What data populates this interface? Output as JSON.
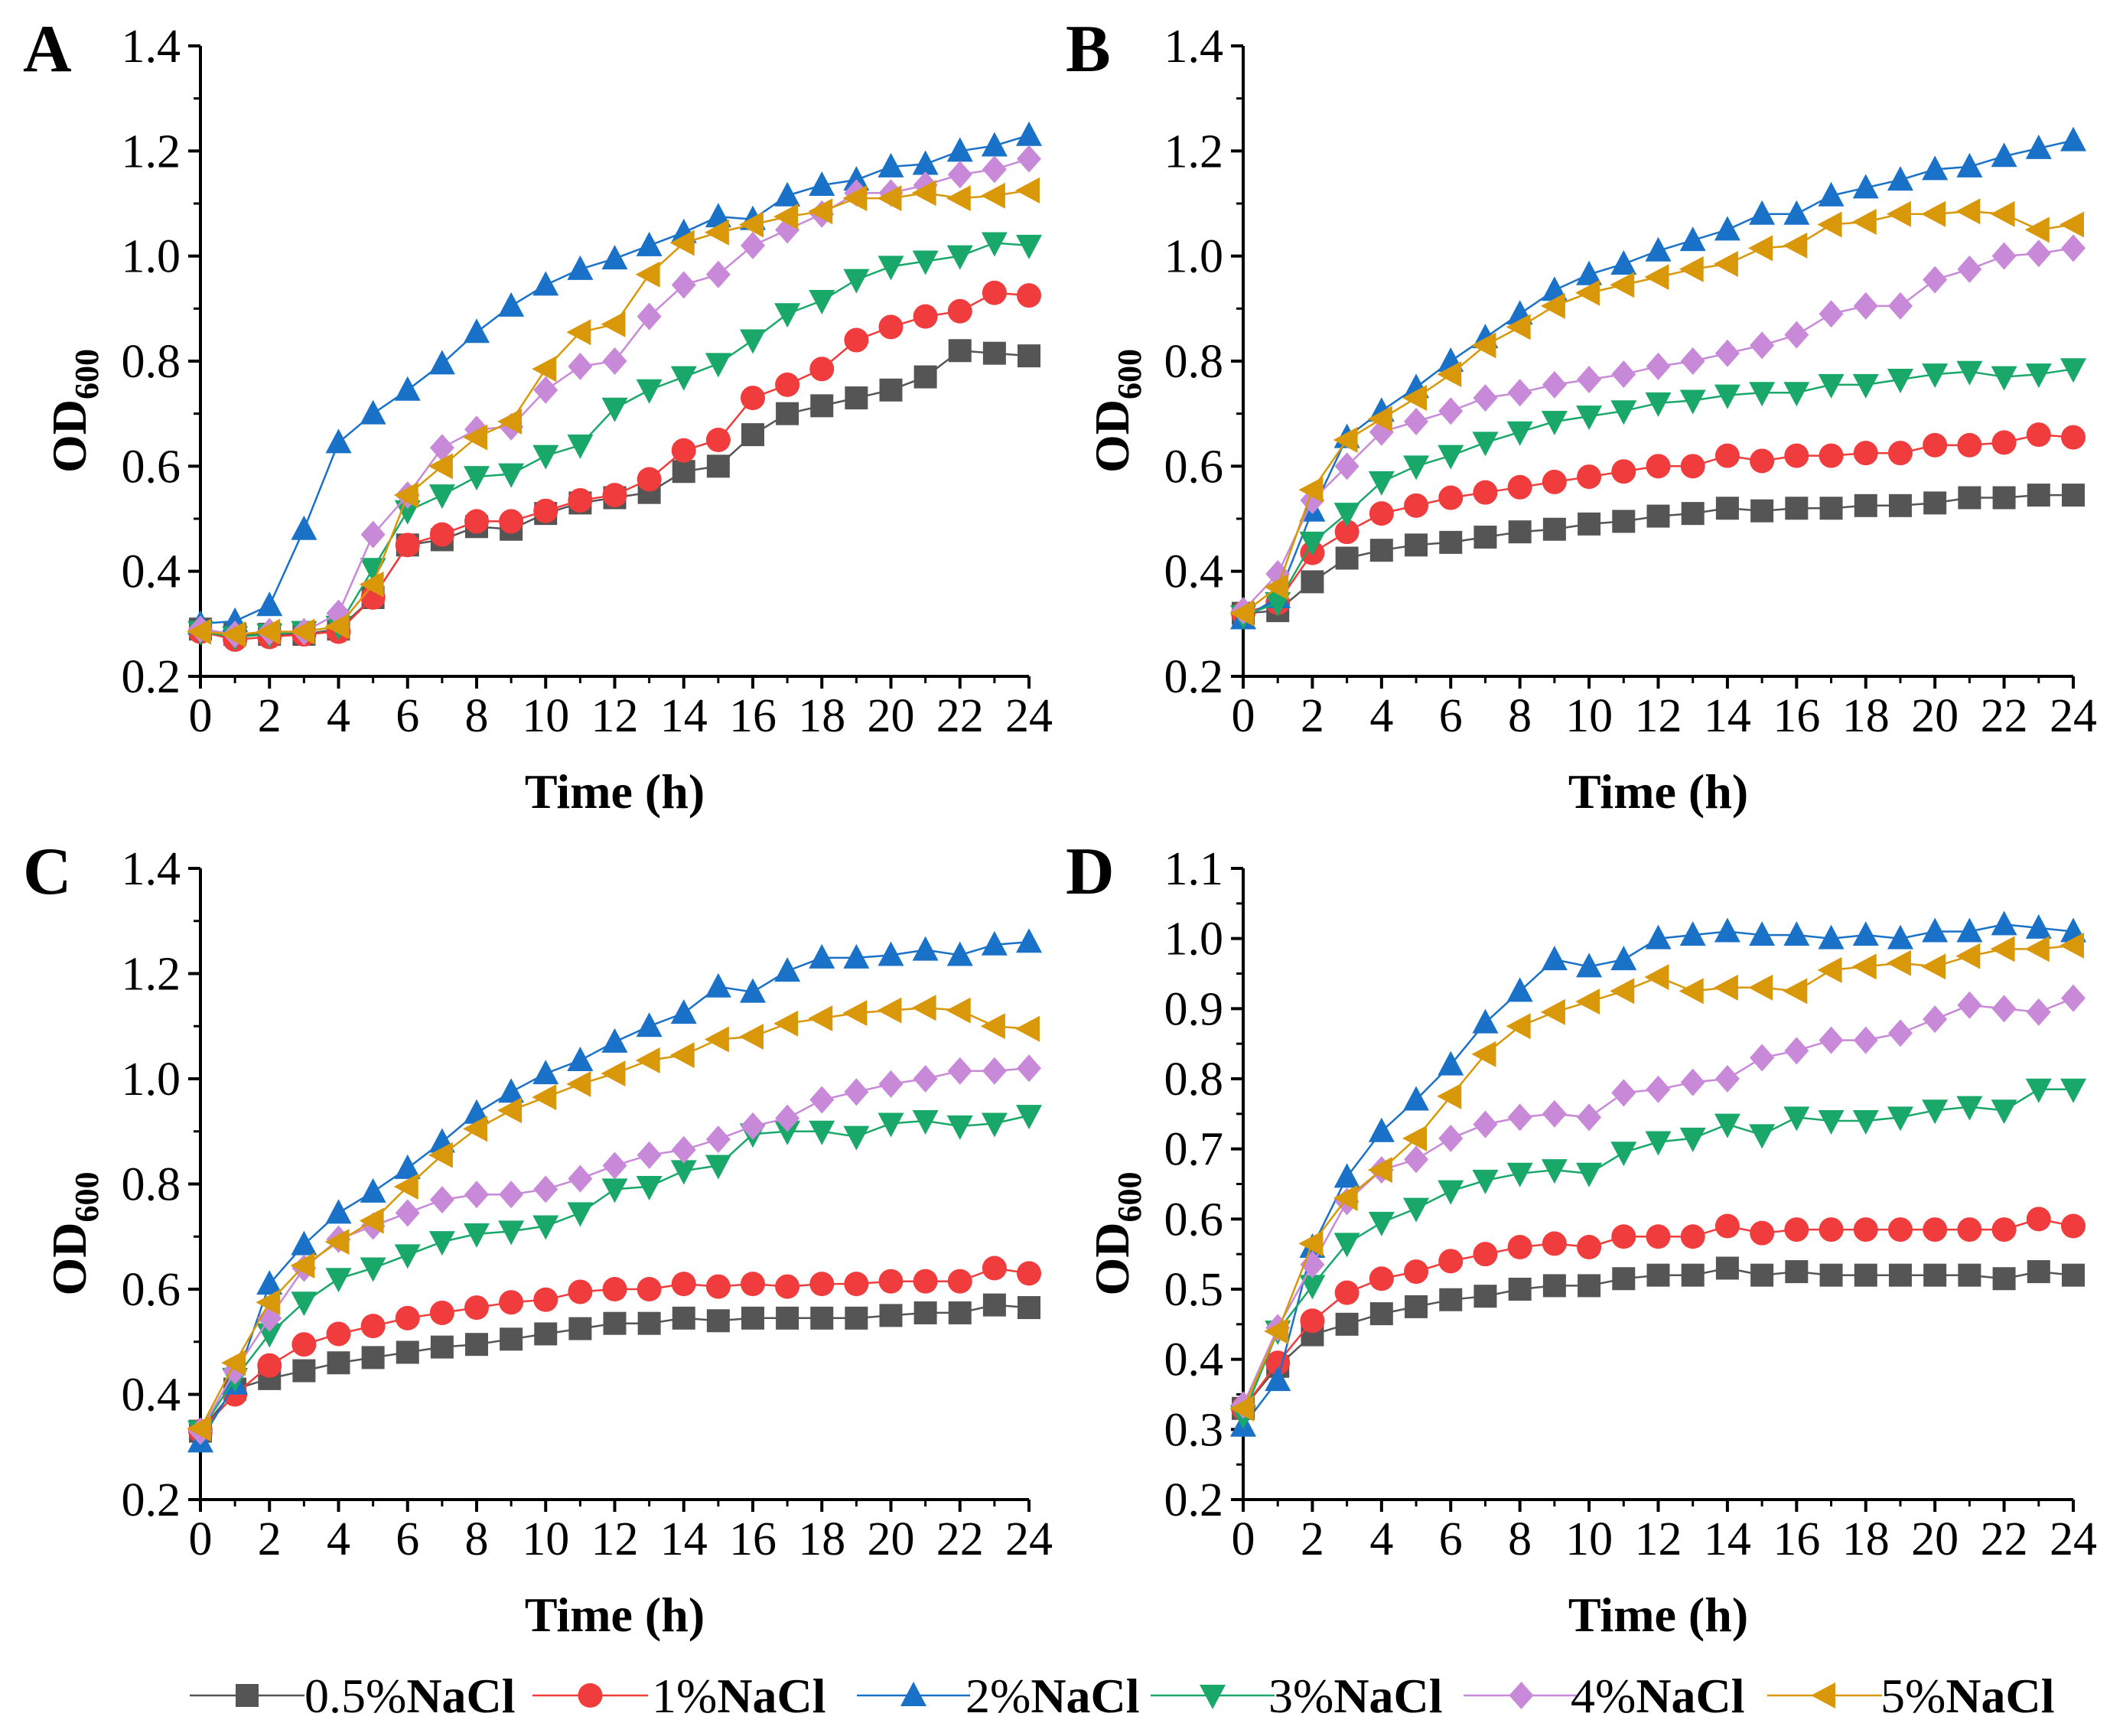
{
  "chart_data": [
    {
      "type": "line",
      "panel": "A",
      "xlabel": "Time (h)",
      "ylabel": "OD",
      "ylabel_sub": "600",
      "xlim": [
        0,
        24
      ],
      "ylim": [
        0.2,
        1.4
      ],
      "xticks": [
        0,
        2,
        4,
        6,
        8,
        10,
        12,
        14,
        16,
        18,
        20,
        22,
        24
      ],
      "yticks": [
        0.2,
        0.4,
        0.6,
        0.8,
        1.0,
        1.2,
        1.4
      ],
      "yticklabels": [
        "0.2",
        "0.4",
        "0.6",
        "0.8",
        "1.0",
        "1.2",
        "1.4"
      ],
      "x": [
        0,
        1,
        2,
        3,
        4,
        5,
        6,
        7,
        8,
        9,
        10,
        11,
        12,
        13,
        14,
        15,
        16,
        17,
        18,
        19,
        20,
        21,
        22,
        23,
        24
      ],
      "series": [
        {
          "name": "0.5%NaCl",
          "values": [
            0.29,
            0.28,
            0.28,
            0.28,
            0.29,
            0.35,
            0.45,
            0.46,
            0.485,
            0.48,
            0.51,
            0.53,
            0.54,
            0.55,
            0.59,
            0.6,
            0.66,
            0.7,
            0.715,
            0.73,
            0.745,
            0.77,
            0.82,
            0.815,
            0.81
          ]
        },
        {
          "name": "1%NaCl",
          "values": [
            0.285,
            0.27,
            0.275,
            0.28,
            0.285,
            0.35,
            0.45,
            0.47,
            0.495,
            0.495,
            0.515,
            0.535,
            0.545,
            0.575,
            0.63,
            0.65,
            0.73,
            0.755,
            0.785,
            0.84,
            0.865,
            0.885,
            0.895,
            0.93,
            0.925
          ]
        },
        {
          "name": "2%NaCl",
          "values": [
            0.3,
            0.305,
            0.335,
            0.48,
            0.645,
            0.7,
            0.745,
            0.795,
            0.855,
            0.905,
            0.945,
            0.975,
            0.995,
            1.02,
            1.045,
            1.075,
            1.07,
            1.115,
            1.135,
            1.145,
            1.17,
            1.175,
            1.2,
            1.21,
            1.23
          ]
        },
        {
          "name": "3%NaCl",
          "values": [
            0.285,
            0.275,
            0.28,
            0.285,
            0.295,
            0.405,
            0.515,
            0.545,
            0.58,
            0.585,
            0.62,
            0.64,
            0.71,
            0.745,
            0.77,
            0.795,
            0.84,
            0.89,
            0.915,
            0.955,
            0.98,
            0.99,
            1.0,
            1.025,
            1.02
          ]
        },
        {
          "name": "4%NaCl",
          "values": [
            0.29,
            0.28,
            0.285,
            0.285,
            0.32,
            0.47,
            0.545,
            0.635,
            0.67,
            0.675,
            0.745,
            0.79,
            0.8,
            0.885,
            0.945,
            0.965,
            1.02,
            1.05,
            1.08,
            1.12,
            1.12,
            1.135,
            1.155,
            1.165,
            1.185
          ]
        },
        {
          "name": "5%NaCl",
          "values": [
            0.285,
            0.28,
            0.285,
            0.285,
            0.295,
            0.375,
            0.545,
            0.6,
            0.655,
            0.685,
            0.785,
            0.855,
            0.87,
            0.965,
            1.025,
            1.045,
            1.06,
            1.075,
            1.085,
            1.11,
            1.11,
            1.12,
            1.11,
            1.115,
            1.125
          ]
        }
      ]
    },
    {
      "type": "line",
      "panel": "B",
      "xlabel": "Time (h)",
      "ylabel": "OD",
      "ylabel_sub": "600",
      "xlim": [
        0,
        24
      ],
      "ylim": [
        0.2,
        1.4
      ],
      "xticks": [
        0,
        2,
        4,
        6,
        8,
        10,
        12,
        14,
        16,
        18,
        20,
        22,
        24
      ],
      "yticks": [
        0.2,
        0.4,
        0.6,
        0.8,
        1.0,
        1.2,
        1.4
      ],
      "yticklabels": [
        "0.2",
        "0.4",
        "0.6",
        "0.8",
        "1.0",
        "1.2",
        "1.4"
      ],
      "x": [
        0,
        1,
        2,
        3,
        4,
        5,
        6,
        7,
        8,
        9,
        10,
        11,
        12,
        13,
        14,
        15,
        16,
        17,
        18,
        19,
        20,
        21,
        22,
        23,
        24
      ],
      "series": [
        {
          "name": "0.5%NaCl",
          "values": [
            0.32,
            0.325,
            0.38,
            0.425,
            0.44,
            0.45,
            0.455,
            0.465,
            0.475,
            0.48,
            0.49,
            0.495,
            0.505,
            0.51,
            0.52,
            0.515,
            0.52,
            0.52,
            0.525,
            0.525,
            0.53,
            0.54,
            0.54,
            0.545,
            0.545
          ]
        },
        {
          "name": "1%NaCl",
          "values": [
            0.32,
            0.34,
            0.435,
            0.475,
            0.51,
            0.525,
            0.54,
            0.55,
            0.56,
            0.57,
            0.58,
            0.59,
            0.6,
            0.6,
            0.62,
            0.61,
            0.62,
            0.62,
            0.625,
            0.625,
            0.64,
            0.64,
            0.645,
            0.66,
            0.655
          ]
        },
        {
          "name": "2%NaCl",
          "values": [
            0.31,
            0.35,
            0.515,
            0.655,
            0.705,
            0.75,
            0.8,
            0.845,
            0.89,
            0.935,
            0.965,
            0.985,
            1.01,
            1.03,
            1.05,
            1.08,
            1.08,
            1.115,
            1.13,
            1.145,
            1.165,
            1.17,
            1.19,
            1.205,
            1.22
          ]
        },
        {
          "name": "3%NaCl",
          "values": [
            0.315,
            0.34,
            0.455,
            0.51,
            0.57,
            0.6,
            0.62,
            0.645,
            0.665,
            0.685,
            0.695,
            0.705,
            0.72,
            0.725,
            0.735,
            0.74,
            0.74,
            0.755,
            0.755,
            0.765,
            0.775,
            0.78,
            0.77,
            0.775,
            0.785
          ]
        },
        {
          "name": "4%NaCl",
          "values": [
            0.325,
            0.395,
            0.535,
            0.6,
            0.665,
            0.685,
            0.705,
            0.73,
            0.74,
            0.755,
            0.765,
            0.775,
            0.79,
            0.8,
            0.815,
            0.83,
            0.85,
            0.89,
            0.905,
            0.905,
            0.955,
            0.975,
            1.0,
            1.005,
            1.015
          ]
        },
        {
          "name": "5%NaCl",
          "values": [
            0.32,
            0.37,
            0.555,
            0.65,
            0.69,
            0.73,
            0.775,
            0.83,
            0.865,
            0.905,
            0.93,
            0.945,
            0.96,
            0.975,
            0.985,
            1.015,
            1.02,
            1.06,
            1.065,
            1.08,
            1.08,
            1.085,
            1.08,
            1.05,
            1.06
          ]
        }
      ]
    },
    {
      "type": "line",
      "panel": "C",
      "xlabel": "Time (h)",
      "ylabel": "OD",
      "ylabel_sub": "600",
      "xlim": [
        0,
        24
      ],
      "ylim": [
        0.2,
        1.4
      ],
      "xticks": [
        0,
        2,
        4,
        6,
        8,
        10,
        12,
        14,
        16,
        18,
        20,
        22,
        24
      ],
      "yticks": [
        0.2,
        0.4,
        0.6,
        0.8,
        1.0,
        1.2,
        1.4
      ],
      "yticklabels": [
        "0.2",
        "0.4",
        "0.6",
        "0.8",
        "1.0",
        "1.2",
        "1.4"
      ],
      "x": [
        0,
        1,
        2,
        3,
        4,
        5,
        6,
        7,
        8,
        9,
        10,
        11,
        12,
        13,
        14,
        15,
        16,
        17,
        18,
        19,
        20,
        21,
        22,
        23,
        24
      ],
      "series": [
        {
          "name": "0.5%NaCl",
          "values": [
            0.33,
            0.41,
            0.43,
            0.445,
            0.46,
            0.47,
            0.48,
            0.49,
            0.495,
            0.505,
            0.515,
            0.525,
            0.535,
            0.535,
            0.545,
            0.54,
            0.545,
            0.545,
            0.545,
            0.545,
            0.55,
            0.555,
            0.555,
            0.57,
            0.565
          ]
        },
        {
          "name": "1%NaCl",
          "values": [
            0.33,
            0.4,
            0.455,
            0.495,
            0.515,
            0.53,
            0.545,
            0.555,
            0.565,
            0.575,
            0.58,
            0.595,
            0.6,
            0.6,
            0.61,
            0.605,
            0.61,
            0.605,
            0.61,
            0.61,
            0.615,
            0.615,
            0.615,
            0.64,
            0.63
          ]
        },
        {
          "name": "2%NaCl",
          "values": [
            0.31,
            0.42,
            0.61,
            0.685,
            0.745,
            0.785,
            0.83,
            0.88,
            0.935,
            0.975,
            1.01,
            1.035,
            1.07,
            1.1,
            1.125,
            1.175,
            1.165,
            1.205,
            1.23,
            1.23,
            1.235,
            1.245,
            1.235,
            1.255,
            1.26
          ]
        },
        {
          "name": "3%NaCl",
          "values": [
            0.33,
            0.43,
            0.515,
            0.575,
            0.62,
            0.64,
            0.665,
            0.69,
            0.705,
            0.71,
            0.72,
            0.745,
            0.79,
            0.795,
            0.825,
            0.835,
            0.895,
            0.9,
            0.9,
            0.89,
            0.915,
            0.92,
            0.91,
            0.915,
            0.93
          ]
        },
        {
          "name": "4%NaCl",
          "values": [
            0.33,
            0.445,
            0.545,
            0.64,
            0.695,
            0.72,
            0.745,
            0.77,
            0.78,
            0.78,
            0.79,
            0.81,
            0.835,
            0.855,
            0.865,
            0.885,
            0.91,
            0.925,
            0.96,
            0.975,
            0.99,
            1.0,
            1.015,
            1.015,
            1.02
          ]
        },
        {
          "name": "5%NaCl",
          "values": [
            0.335,
            0.46,
            0.575,
            0.645,
            0.69,
            0.73,
            0.795,
            0.855,
            0.905,
            0.94,
            0.965,
            0.99,
            1.01,
            1.035,
            1.045,
            1.075,
            1.08,
            1.105,
            1.115,
            1.125,
            1.13,
            1.135,
            1.13,
            1.1,
            1.095
          ]
        }
      ]
    },
    {
      "type": "line",
      "panel": "D",
      "xlabel": "Time (h)",
      "ylabel": "OD",
      "ylabel_sub": "600",
      "xlim": [
        0,
        24
      ],
      "ylim": [
        0.2,
        1.1
      ],
      "xticks": [
        0,
        2,
        4,
        6,
        8,
        10,
        12,
        14,
        16,
        18,
        20,
        22,
        24
      ],
      "yticks": [
        0.2,
        0.3,
        0.4,
        0.5,
        0.6,
        0.7,
        0.8,
        0.9,
        1.0,
        1.1
      ],
      "yticklabels": [
        "0.2",
        "0.3",
        "0.4",
        "0.5",
        "0.6",
        "0.7",
        "0.8",
        "0.9",
        "1.0",
        "1.1"
      ],
      "x": [
        0,
        1,
        2,
        3,
        4,
        5,
        6,
        7,
        8,
        9,
        10,
        11,
        12,
        13,
        14,
        15,
        16,
        17,
        18,
        19,
        20,
        21,
        22,
        23,
        24
      ],
      "series": [
        {
          "name": "0.5%NaCl",
          "values": [
            0.33,
            0.39,
            0.435,
            0.45,
            0.465,
            0.475,
            0.485,
            0.49,
            0.5,
            0.505,
            0.505,
            0.515,
            0.52,
            0.52,
            0.53,
            0.52,
            0.525,
            0.52,
            0.52,
            0.52,
            0.52,
            0.52,
            0.515,
            0.525,
            0.52
          ]
        },
        {
          "name": "1%NaCl",
          "values": [
            0.33,
            0.395,
            0.455,
            0.495,
            0.515,
            0.525,
            0.54,
            0.55,
            0.56,
            0.565,
            0.56,
            0.575,
            0.575,
            0.575,
            0.59,
            0.58,
            0.585,
            0.585,
            0.585,
            0.585,
            0.585,
            0.585,
            0.585,
            0.6,
            0.59
          ]
        },
        {
          "name": "2%NaCl",
          "values": [
            0.305,
            0.37,
            0.56,
            0.66,
            0.725,
            0.77,
            0.82,
            0.88,
            0.925,
            0.97,
            0.96,
            0.97,
            1.0,
            1.005,
            1.01,
            1.005,
            1.005,
            1.0,
            1.005,
            1.0,
            1.01,
            1.01,
            1.02,
            1.015,
            1.01
          ]
        },
        {
          "name": "3%NaCl",
          "values": [
            0.32,
            0.44,
            0.505,
            0.565,
            0.595,
            0.615,
            0.64,
            0.655,
            0.665,
            0.67,
            0.665,
            0.695,
            0.71,
            0.715,
            0.735,
            0.72,
            0.745,
            0.74,
            0.74,
            0.745,
            0.755,
            0.76,
            0.755,
            0.785,
            0.785
          ]
        },
        {
          "name": "4%NaCl",
          "values": [
            0.335,
            0.445,
            0.535,
            0.625,
            0.67,
            0.685,
            0.715,
            0.735,
            0.745,
            0.75,
            0.745,
            0.78,
            0.785,
            0.795,
            0.8,
            0.83,
            0.84,
            0.855,
            0.855,
            0.865,
            0.885,
            0.905,
            0.9,
            0.895,
            0.915
          ]
        },
        {
          "name": "5%NaCl",
          "values": [
            0.33,
            0.44,
            0.565,
            0.63,
            0.67,
            0.715,
            0.775,
            0.835,
            0.875,
            0.895,
            0.91,
            0.925,
            0.945,
            0.925,
            0.93,
            0.93,
            0.925,
            0.955,
            0.96,
            0.965,
            0.96,
            0.975,
            0.985,
            0.985,
            0.99
          ]
        }
      ]
    }
  ],
  "legend": {
    "items": [
      {
        "number": "0.5%",
        "suffix": "NaCl",
        "color": "#555555",
        "marker": "square"
      },
      {
        "number": "1%",
        "suffix": "NaCl",
        "color": "#f03c3c",
        "marker": "circle"
      },
      {
        "number": "2%",
        "suffix": "NaCl",
        "color": "#1a72c8",
        "marker": "triangle-up"
      },
      {
        "number": "3%",
        "suffix": "NaCl",
        "color": "#1aa86a",
        "marker": "triangle-down"
      },
      {
        "number": "4%",
        "suffix": "NaCl",
        "color": "#c88ad8",
        "marker": "diamond"
      },
      {
        "number": "5%",
        "suffix": "NaCl",
        "color": "#d8980a",
        "marker": "triangle-left"
      }
    ]
  }
}
